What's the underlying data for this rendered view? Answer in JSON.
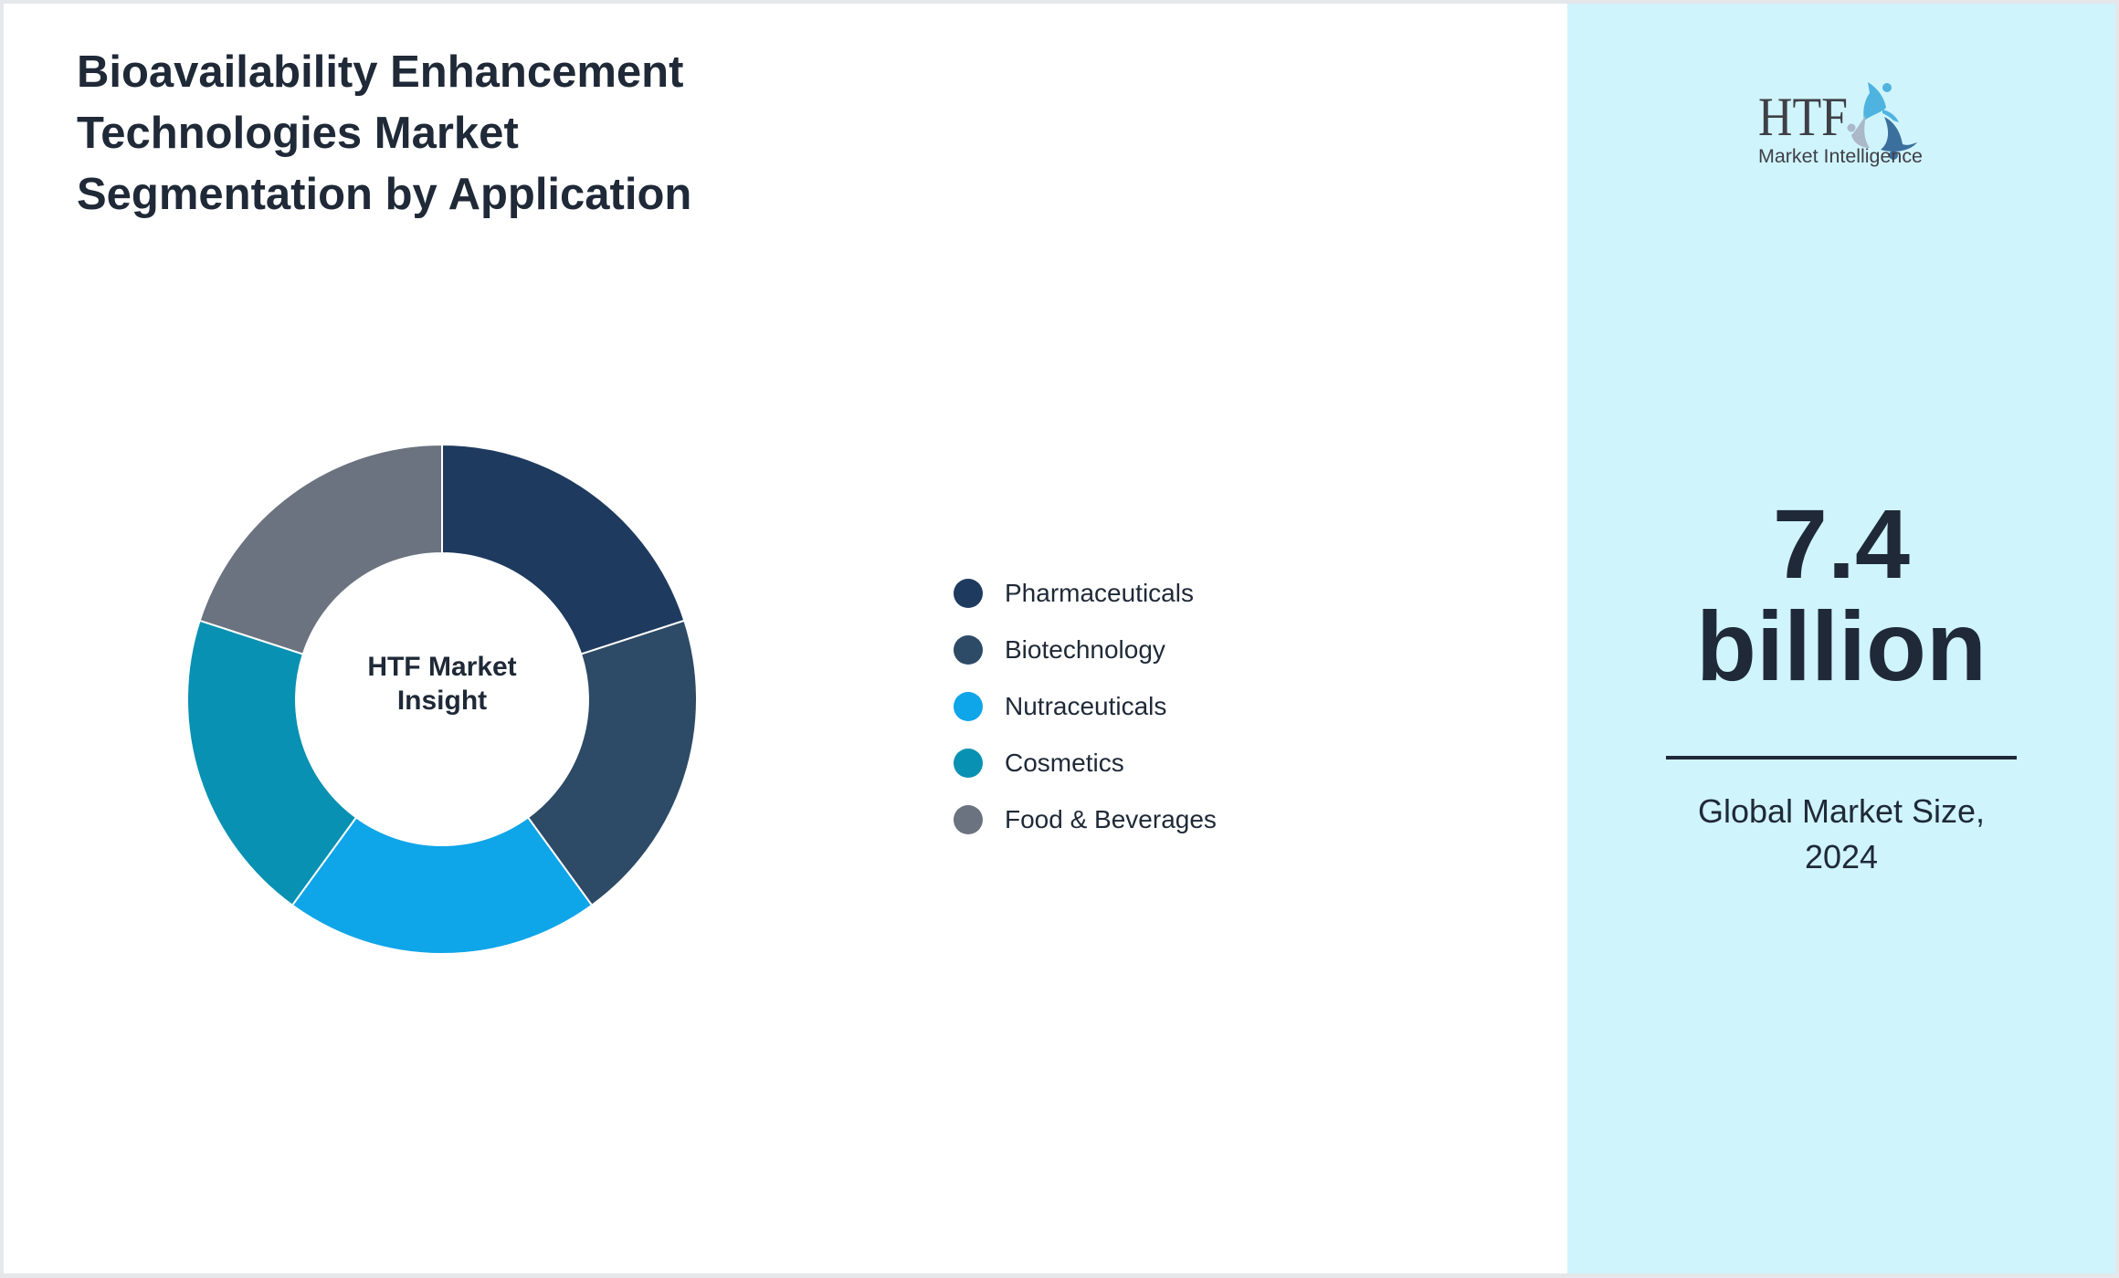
{
  "title": {
    "lines": [
      "Bioavailability Enhancement",
      "Technologies Market",
      "Segmentation by Application"
    ]
  },
  "donut": {
    "center_label_lines": [
      "HTF Market",
      "Insight"
    ]
  },
  "legend": {
    "items": [
      {
        "label": "Pharmaceuticals",
        "color": "#1e3a5f"
      },
      {
        "label": "Biotechnology",
        "color": "#2d4a66"
      },
      {
        "label": "Nutraceuticals",
        "color": "#0ea5e9"
      },
      {
        "label": "Cosmetics",
        "color": "#0891b2"
      },
      {
        "label": "Food & Beverages",
        "color": "#6b7280"
      }
    ]
  },
  "side_panel": {
    "logo": {
      "wordmark": "HTF",
      "tagline": "Market Intelligence"
    },
    "value_lines": [
      "7.4",
      "billion"
    ],
    "caption_lines": [
      "Global Market Size,",
      "2024"
    ],
    "background": "#cff4fc"
  },
  "chart_data": {
    "type": "pie",
    "subtype": "donut",
    "title": "Bioavailability Enhancement Technologies Market Segmentation by Application",
    "center_label": "HTF Market Insight",
    "categories": [
      "Pharmaceuticals",
      "Biotechnology",
      "Nutraceuticals",
      "Cosmetics",
      "Food & Beverages"
    ],
    "values": [
      20,
      20,
      20,
      20,
      20
    ],
    "colors": [
      "#1e3a5f",
      "#2d4a66",
      "#0ea5e9",
      "#0891b2",
      "#6b7280"
    ],
    "start_angle_deg": 0,
    "direction": "clockwise",
    "legend_position": "right",
    "annotation": {
      "value": "7.4 billion",
      "label": "Global Market Size, 2024"
    }
  }
}
